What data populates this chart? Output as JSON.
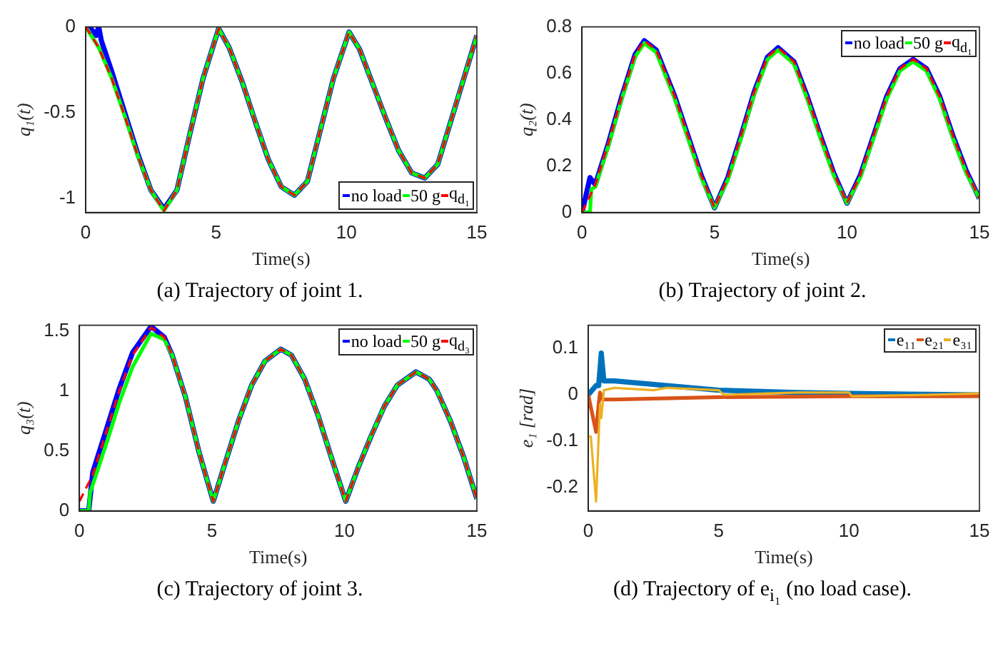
{
  "chart_data": [
    {
      "type": "line",
      "title": "(a) Trajectory of joint 1.",
      "xlabel": "Time(s)",
      "ylabel": "q₁(t)",
      "xlim": [
        0,
        15
      ],
      "xticks": [
        0,
        5,
        10,
        15
      ],
      "ylim": [
        -1.08,
        0
      ],
      "yticks": [
        -1,
        -0.5,
        0
      ],
      "grid": false,
      "legend": "bottom right",
      "marker": "none",
      "series": [
        {
          "name": "no load",
          "color": "#0000ff",
          "line_style": "solid",
          "x": [
            0,
            0.2,
            0.4,
            0.5,
            0.6,
            1,
            1.5,
            2,
            2.5,
            3,
            3.5,
            4,
            4.5,
            5.1,
            5.5,
            6,
            6.5,
            7,
            7.5,
            8,
            8.5,
            9,
            9.5,
            10.1,
            10.5,
            11,
            11.5,
            12,
            12.5,
            13,
            13.5,
            14,
            14.5,
            15
          ],
          "values": [
            0,
            -0.01,
            -0.05,
            0,
            -0.08,
            -0.26,
            -0.5,
            -0.74,
            -0.95,
            -1.06,
            -0.95,
            -0.62,
            -0.3,
            -0.01,
            -0.12,
            -0.32,
            -0.55,
            -0.77,
            -0.93,
            -0.98,
            -0.9,
            -0.6,
            -0.3,
            -0.03,
            -0.13,
            -0.33,
            -0.53,
            -0.72,
            -0.85,
            -0.88,
            -0.8,
            -0.55,
            -0.3,
            -0.05
          ]
        },
        {
          "name": "50 g",
          "color": "#00ff00",
          "line_style": "solid",
          "x": [
            0,
            0.5,
            1,
            1.5,
            2,
            2.5,
            3,
            3.5,
            4,
            4.5,
            5.1,
            5.5,
            6,
            6.5,
            7,
            7.5,
            8,
            8.5,
            9,
            9.5,
            10.1,
            10.5,
            11,
            11.5,
            12,
            12.5,
            13,
            13.5,
            14,
            14.5,
            15
          ],
          "values": [
            0,
            -0.12,
            -0.3,
            -0.52,
            -0.75,
            -0.95,
            -1.07,
            -0.95,
            -0.62,
            -0.3,
            -0.01,
            -0.12,
            -0.32,
            -0.55,
            -0.77,
            -0.93,
            -0.98,
            -0.9,
            -0.6,
            -0.3,
            -0.03,
            -0.13,
            -0.33,
            -0.53,
            -0.72,
            -0.85,
            -0.88,
            -0.8,
            -0.55,
            -0.3,
            -0.05
          ]
        },
        {
          "name": "q$_{d₁}$",
          "color": "#ff0000",
          "line_style": "dashed",
          "x": [
            0,
            0.5,
            1,
            1.5,
            2,
            2.5,
            3,
            3.5,
            4,
            4.5,
            5.1,
            5.5,
            6,
            6.5,
            7,
            7.5,
            8,
            8.5,
            9,
            9.5,
            10.1,
            10.5,
            11,
            11.5,
            12,
            12.5,
            13,
            13.5,
            14,
            14.5,
            15
          ],
          "values": [
            0,
            -0.12,
            -0.3,
            -0.52,
            -0.75,
            -0.95,
            -1.07,
            -0.95,
            -0.62,
            -0.3,
            -0.01,
            -0.12,
            -0.32,
            -0.55,
            -0.77,
            -0.93,
            -0.98,
            -0.9,
            -0.6,
            -0.3,
            -0.03,
            -0.13,
            -0.33,
            -0.53,
            -0.72,
            -0.85,
            -0.88,
            -0.8,
            -0.55,
            -0.3,
            -0.05
          ]
        }
      ]
    },
    {
      "type": "line",
      "title": "(b) Trajectory of joint 2.",
      "xlabel": "Time(s)",
      "ylabel": "q₂(t)",
      "xlim": [
        0,
        15
      ],
      "xticks": [
        0,
        5,
        10,
        15
      ],
      "ylim": [
        0,
        0.8
      ],
      "yticks": [
        0,
        0.2,
        0.4,
        0.6,
        0.8
      ],
      "grid": false,
      "legend": "top right",
      "marker": "none",
      "series": [
        {
          "name": "no load",
          "color": "#0000ff",
          "line_style": "solid",
          "x": [
            0,
            0.3,
            0.5,
            1,
            1.5,
            2,
            2.35,
            2.8,
            3.5,
            4,
            4.5,
            5,
            5.5,
            6,
            6.5,
            7,
            7.4,
            8,
            8.5,
            9,
            9.5,
            10,
            10.5,
            11,
            11.5,
            12,
            12.5,
            13,
            13.5,
            14,
            14.5,
            15
          ],
          "values": [
            0,
            0.15,
            0.12,
            0.3,
            0.5,
            0.68,
            0.74,
            0.7,
            0.5,
            0.33,
            0.16,
            0.02,
            0.15,
            0.33,
            0.52,
            0.67,
            0.71,
            0.65,
            0.5,
            0.33,
            0.17,
            0.04,
            0.16,
            0.33,
            0.5,
            0.62,
            0.66,
            0.62,
            0.5,
            0.33,
            0.18,
            0.06
          ]
        },
        {
          "name": "50 g",
          "color": "#00ff00",
          "line_style": "solid",
          "x": [
            0,
            0.3,
            0.35,
            0.5,
            1,
            1.5,
            2,
            2.35,
            2.8,
            3.5,
            4,
            4.5,
            5,
            5.5,
            6,
            6.5,
            7,
            7.4,
            8,
            8.5,
            9,
            9.5,
            10,
            10.5,
            11,
            11.5,
            12,
            12.5,
            13,
            13.5,
            14,
            14.5,
            15
          ],
          "values": [
            0,
            0,
            0.1,
            0.11,
            0.29,
            0.49,
            0.67,
            0.73,
            0.69,
            0.49,
            0.32,
            0.15,
            0.02,
            0.14,
            0.32,
            0.51,
            0.66,
            0.7,
            0.64,
            0.49,
            0.32,
            0.16,
            0.04,
            0.15,
            0.32,
            0.49,
            0.61,
            0.65,
            0.61,
            0.49,
            0.32,
            0.17,
            0.06
          ]
        },
        {
          "name": "q$_{d₁}$",
          "color": "#ff0000",
          "line_style": "dashed",
          "x": [
            0,
            0.5,
            1,
            1.5,
            2,
            2.35,
            2.8,
            3.5,
            4,
            4.5,
            5,
            5.5,
            6,
            6.5,
            7,
            7.4,
            8,
            8.5,
            9,
            9.5,
            10,
            10.5,
            11,
            11.5,
            12,
            12.5,
            13,
            13.5,
            14,
            14.5,
            15
          ],
          "values": [
            0,
            0.12,
            0.3,
            0.5,
            0.68,
            0.74,
            0.7,
            0.5,
            0.33,
            0.16,
            0.02,
            0.15,
            0.33,
            0.52,
            0.67,
            0.71,
            0.65,
            0.5,
            0.33,
            0.17,
            0.04,
            0.16,
            0.33,
            0.5,
            0.62,
            0.66,
            0.62,
            0.5,
            0.33,
            0.18,
            0.06
          ]
        }
      ]
    },
    {
      "type": "line",
      "title": "(c) Trajectory of joint 3.",
      "xlabel": "Time(s)",
      "ylabel": "q₃(t)",
      "xlim": [
        0,
        15
      ],
      "xticks": [
        0,
        5,
        10,
        15
      ],
      "ylim": [
        0,
        1.55
      ],
      "yticks": [
        0,
        0.5,
        1,
        1.5
      ],
      "grid": false,
      "legend": "top right",
      "marker": "none",
      "series": [
        {
          "name": "no load",
          "color": "#0000ff",
          "line_style": "solid",
          "x": [
            0,
            0.35,
            0.5,
            1,
            1.5,
            2,
            2.7,
            3.2,
            3.5,
            4,
            4.5,
            5.05,
            5.5,
            6,
            6.5,
            7,
            7.6,
            8,
            8.5,
            9,
            9.5,
            10.05,
            10.5,
            11,
            11.5,
            12,
            12.7,
            13.2,
            13.5,
            14,
            14.5,
            15
          ],
          "values": [
            0,
            0,
            0.32,
            0.67,
            1.02,
            1.32,
            1.54,
            1.45,
            1.3,
            0.95,
            0.5,
            0.08,
            0.4,
            0.75,
            1.05,
            1.25,
            1.35,
            1.3,
            1.1,
            0.8,
            0.45,
            0.08,
            0.35,
            0.62,
            0.87,
            1.05,
            1.16,
            1.1,
            1,
            0.75,
            0.45,
            0.1
          ]
        },
        {
          "name": "50 g",
          "color": "#00ff00",
          "line_style": "solid",
          "x": [
            0,
            0.35,
            0.4,
            1,
            1.5,
            2,
            2.7,
            3.2,
            3.5,
            4,
            4.5,
            5.05,
            5.5,
            6,
            6.5,
            7,
            7.6,
            8,
            8.5,
            9,
            9.5,
            10.05,
            10.5,
            11,
            11.5,
            12,
            12.7,
            13.2,
            13.5,
            14,
            14.5,
            15
          ],
          "values": [
            0,
            0,
            0.15,
            0.55,
            0.9,
            1.2,
            1.48,
            1.43,
            1.3,
            0.95,
            0.5,
            0.08,
            0.4,
            0.75,
            1.05,
            1.25,
            1.35,
            1.3,
            1.1,
            0.8,
            0.45,
            0.08,
            0.35,
            0.62,
            0.87,
            1.05,
            1.16,
            1.1,
            1,
            0.75,
            0.45,
            0.1
          ]
        },
        {
          "name": "q$_{d₃}$",
          "color": "#ff0000",
          "line_style": "dashed",
          "x": [
            0,
            0.5,
            1,
            1.5,
            2,
            2.7,
            3.2,
            3.5,
            4,
            4.5,
            5.05,
            5.5,
            6,
            6.5,
            7,
            7.6,
            8,
            8.5,
            9,
            9.5,
            10.05,
            10.5,
            11,
            11.5,
            12,
            12.7,
            13.2,
            13.5,
            14,
            14.5,
            15
          ],
          "values": [
            0.08,
            0.3,
            0.65,
            1,
            1.3,
            1.53,
            1.45,
            1.3,
            0.95,
            0.5,
            0.08,
            0.4,
            0.75,
            1.05,
            1.25,
            1.35,
            1.3,
            1.1,
            0.8,
            0.45,
            0.08,
            0.35,
            0.62,
            0.87,
            1.05,
            1.16,
            1.1,
            1,
            0.75,
            0.45,
            0.1
          ]
        }
      ]
    },
    {
      "type": "line",
      "title": "(d) Trajectory of e$_{i₁}$ (no load case).",
      "xlabel": "Time(s)",
      "ylabel": "e₁ [rad]",
      "xlim": [
        0,
        15
      ],
      "xticks": [
        0,
        5,
        10,
        15
      ],
      "ylim": [
        -0.25,
        0.15
      ],
      "yticks": [
        -0.2,
        -0.1,
        0,
        0.1
      ],
      "grid": false,
      "legend": "top right",
      "marker": "none",
      "series": [
        {
          "name": "e₁₁",
          "color": "#0072bd",
          "line_style": "solid",
          "x": [
            0,
            0.3,
            0.4,
            0.5,
            0.6,
            1,
            3,
            5,
            8,
            10,
            15
          ],
          "values": [
            0,
            0.02,
            0.02,
            0.09,
            0.03,
            0.03,
            0.02,
            0.01,
            0.005,
            0.003,
            0
          ]
        },
        {
          "name": "e₂₁",
          "color": "#d95319",
          "line_style": "solid",
          "x": [
            0,
            0.3,
            0.4,
            0.45,
            0.55,
            1,
            5,
            10,
            15
          ],
          "values": [
            0,
            -0.08,
            -0.02,
            0.005,
            -0.01,
            -0.01,
            -0.005,
            -0.003,
            -0.003
          ]
        },
        {
          "name": "e₃₁",
          "color": "#edb120",
          "line_style": "solid",
          "x": [
            0,
            0.1,
            0.3,
            0.45,
            0.5,
            0.6,
            1,
            2.5,
            3,
            5,
            5.2,
            8,
            10,
            10.1,
            13,
            15
          ],
          "values": [
            -0.09,
            -0.09,
            -0.23,
            -0.02,
            -0.05,
            0.01,
            0.015,
            0.01,
            0.015,
            0.01,
            0,
            0.005,
            0.005,
            -0.003,
            0,
            0.003
          ]
        }
      ]
    }
  ]
}
